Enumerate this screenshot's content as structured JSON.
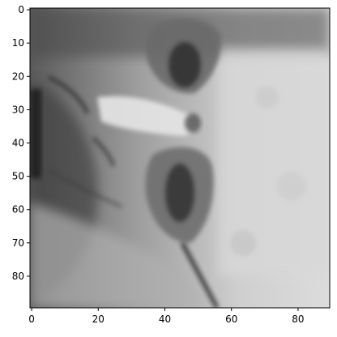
{
  "chart_data": {
    "type": "heatmap",
    "colormap": "gray",
    "title": "",
    "xlabel": "",
    "ylabel": "",
    "x_range": [
      -0.5,
      89.5
    ],
    "y_range": [
      89.5,
      -0.5
    ],
    "y_inverted": true,
    "grid": false,
    "legend": "none",
    "x_ticks": [
      0,
      20,
      40,
      60,
      80
    ],
    "y_ticks": [
      0,
      10,
      20,
      30,
      40,
      50,
      60,
      70,
      80
    ],
    "x_tick_labels": [
      "0",
      "20",
      "40",
      "60",
      "80"
    ],
    "y_tick_labels": [
      "0",
      "10",
      "20",
      "30",
      "40",
      "50",
      "60",
      "70",
      "80"
    ],
    "image_shape": [
      90,
      90
    ],
    "image_description": "Grayscale pixel image showing a close-up of a human face rotated sideways: nose at center-left, lips and mouth on the right side"
  },
  "colors": {
    "axis": "#000000",
    "background": "#ffffff"
  }
}
